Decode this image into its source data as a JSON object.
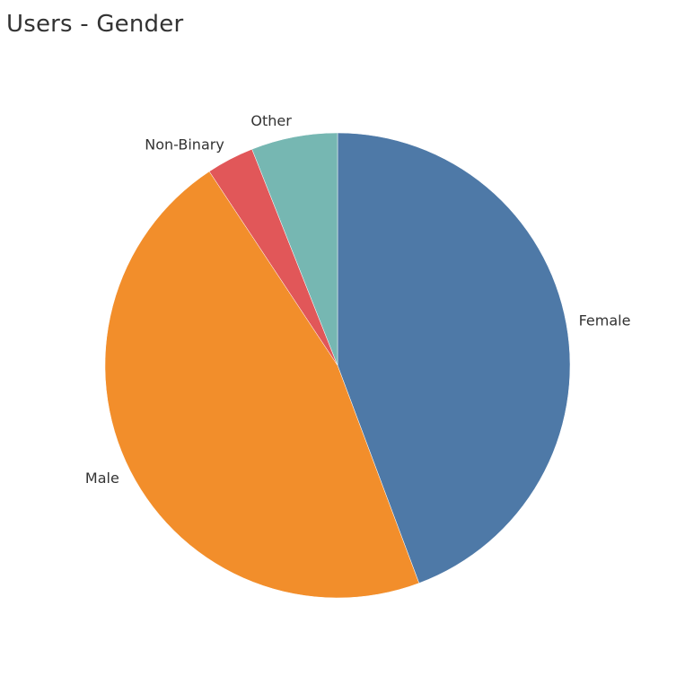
{
  "chart_data": {
    "type": "pie",
    "title": "Users - Gender",
    "slices": [
      {
        "label": "Female",
        "value": 44.3,
        "color": "#4e79a7"
      },
      {
        "label": "Male",
        "value": 46.4,
        "color": "#f28e2b"
      },
      {
        "label": "Non-Binary",
        "value": 3.3,
        "color": "#e15759"
      },
      {
        "label": "Other",
        "value": 6.0,
        "color": "#76b7b2"
      }
    ],
    "start_angle": "12 o'clock",
    "direction": "clockwise",
    "legend": "none"
  }
}
